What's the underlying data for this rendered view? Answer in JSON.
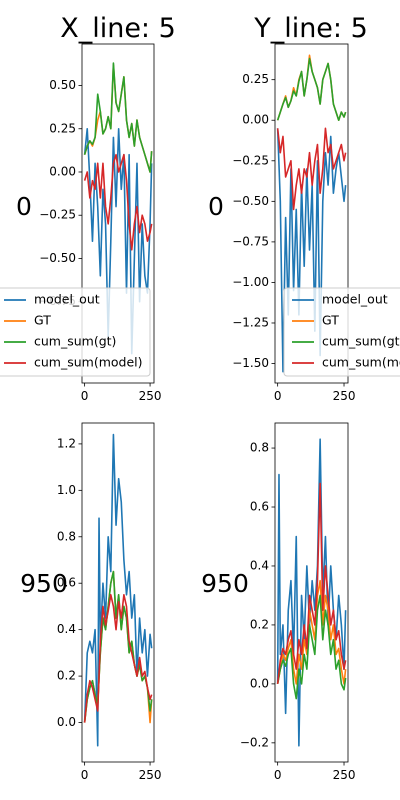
{
  "chart_data": [
    {
      "type": "line",
      "title": "X_line: 5",
      "row_label": "0",
      "xlim": [
        -10,
        265
      ],
      "ylim": [
        -1.22,
        0.74
      ],
      "xticks": [
        0,
        250
      ],
      "yticks": [
        -0.75,
        -0.5,
        -0.25,
        0.0,
        0.25,
        0.5
      ],
      "ytick_labels": [
        "−0.75",
        "−0.50",
        "−0.25",
        "0.00",
        "0.25",
        "0.50"
      ],
      "xtick_labels": [
        "0",
        "250"
      ],
      "legend": "lower-left",
      "series": [
        {
          "name": "model_out",
          "color": "#1f77b4",
          "x": [
            0,
            10,
            20,
            30,
            40,
            50,
            60,
            70,
            80,
            90,
            100,
            110,
            120,
            130,
            140,
            150,
            160,
            170,
            180,
            190,
            200,
            210,
            220,
            230,
            240,
            250,
            256
          ],
          "y": [
            0.1,
            0.25,
            -0.05,
            -0.4,
            0.05,
            -0.2,
            -0.6,
            -0.1,
            -0.3,
            -0.95,
            -0.4,
            0.2,
            -0.2,
            0.25,
            -0.1,
            0.1,
            -0.7,
            0.1,
            -1.05,
            -0.5,
            0.05,
            -0.75,
            -0.3,
            -0.6,
            -0.7,
            -0.3,
            0.05
          ]
        },
        {
          "name": "GT",
          "color": "#ff7f0e",
          "x": [
            0,
            10,
            20,
            30,
            40,
            50,
            60,
            70,
            80,
            90,
            100,
            110,
            120,
            130,
            140,
            150,
            160,
            170,
            180,
            190,
            200,
            210,
            220,
            230,
            240,
            250,
            256
          ],
          "y": [
            0.1,
            0.15,
            0.18,
            0.15,
            0.2,
            0.3,
            0.35,
            0.22,
            0.25,
            0.32,
            0.25,
            0.62,
            0.4,
            0.35,
            0.45,
            0.55,
            0.3,
            0.2,
            0.28,
            0.15,
            0.3,
            0.2,
            0.15,
            0.1,
            0.05,
            0.0,
            0.12
          ]
        },
        {
          "name": "cum_sum(gt)",
          "color": "#2ca02c",
          "x": [
            0,
            10,
            20,
            30,
            40,
            50,
            60,
            70,
            80,
            90,
            100,
            110,
            120,
            130,
            140,
            150,
            160,
            170,
            180,
            190,
            200,
            210,
            220,
            230,
            240,
            250,
            256
          ],
          "y": [
            0.1,
            0.15,
            0.18,
            0.16,
            0.2,
            0.45,
            0.35,
            0.22,
            0.25,
            0.32,
            0.25,
            0.63,
            0.4,
            0.35,
            0.45,
            0.55,
            0.3,
            0.2,
            0.28,
            0.15,
            0.3,
            0.2,
            0.15,
            0.1,
            0.05,
            0.0,
            0.12
          ]
        },
        {
          "name": "cum_sum(model)",
          "color": "#d62728",
          "x": [
            0,
            10,
            20,
            30,
            40,
            50,
            60,
            70,
            80,
            90,
            100,
            110,
            120,
            130,
            140,
            150,
            160,
            170,
            180,
            190,
            200,
            210,
            220,
            230,
            240,
            250,
            256
          ],
          "y": [
            -0.05,
            0.0,
            -0.15,
            -0.05,
            -0.1,
            0.05,
            -0.15,
            0.05,
            -0.2,
            -0.3,
            -0.15,
            0.05,
            0.1,
            0.0,
            0.05,
            0.1,
            -0.05,
            -0.3,
            -0.45,
            -0.3,
            -0.2,
            -0.35,
            -0.25,
            -0.3,
            -0.4,
            -0.35,
            -0.3
          ]
        }
      ]
    },
    {
      "type": "line",
      "title": "Y_line: 5",
      "row_label": "0",
      "xlim": [
        -10,
        265
      ],
      "ylim": [
        -1.62,
        0.47
      ],
      "xticks": [
        0,
        250
      ],
      "yticks": [
        -1.5,
        -1.25,
        -1.0,
        -0.75,
        -0.5,
        -0.25,
        0.0,
        0.25
      ],
      "ytick_labels": [
        "−1.50",
        "−1.25",
        "−1.00",
        "−0.75",
        "−0.50",
        "−0.25",
        "0.00",
        "0.25"
      ],
      "xtick_labels": [
        "0",
        "250"
      ],
      "legend": "lower-right",
      "series": [
        {
          "name": "model_out",
          "color": "#1f77b4",
          "x": [
            0,
            10,
            20,
            30,
            40,
            50,
            60,
            70,
            80,
            90,
            100,
            110,
            120,
            130,
            140,
            150,
            160,
            170,
            180,
            190,
            200,
            210,
            220,
            230,
            240,
            250,
            256
          ],
          "y": [
            -0.05,
            -0.5,
            -1.55,
            -0.6,
            -1.2,
            -0.3,
            -1.05,
            -0.55,
            -1.2,
            -0.4,
            -0.9,
            -0.3,
            -0.8,
            -0.4,
            -1.3,
            -0.25,
            -1.45,
            -0.5,
            -0.2,
            -0.4,
            -0.1,
            -0.45,
            -0.3,
            -0.2,
            -0.35,
            -0.5,
            -0.4
          ]
        },
        {
          "name": "GT",
          "color": "#ff7f0e",
          "x": [
            0,
            10,
            20,
            30,
            40,
            50,
            60,
            70,
            80,
            90,
            100,
            110,
            120,
            130,
            140,
            150,
            160,
            170,
            180,
            190,
            200,
            210,
            220,
            230,
            240,
            250,
            256
          ],
          "y": [
            0.0,
            0.05,
            0.1,
            0.15,
            0.08,
            0.12,
            0.2,
            0.15,
            0.25,
            0.3,
            0.15,
            0.25,
            0.4,
            0.3,
            0.25,
            0.2,
            0.1,
            0.25,
            0.3,
            0.35,
            0.25,
            0.1,
            0.05,
            0.0,
            0.05,
            0.02,
            0.05
          ]
        },
        {
          "name": "cum_sum(gt)",
          "color": "#2ca02c",
          "x": [
            0,
            10,
            20,
            30,
            40,
            50,
            60,
            70,
            80,
            90,
            100,
            110,
            120,
            130,
            140,
            150,
            160,
            170,
            180,
            190,
            200,
            210,
            220,
            230,
            240,
            250,
            256
          ],
          "y": [
            0.0,
            0.05,
            0.1,
            0.14,
            0.08,
            0.12,
            0.18,
            0.15,
            0.24,
            0.3,
            0.15,
            0.25,
            0.38,
            0.3,
            0.25,
            0.2,
            0.1,
            0.25,
            0.3,
            0.35,
            0.25,
            0.1,
            0.05,
            0.0,
            0.05,
            0.02,
            0.05
          ]
        },
        {
          "name": "cum_sum(model)",
          "color": "#d62728",
          "x": [
            0,
            10,
            20,
            30,
            40,
            50,
            60,
            70,
            80,
            90,
            100,
            110,
            120,
            130,
            140,
            150,
            160,
            170,
            180,
            190,
            200,
            210,
            220,
            230,
            240,
            250,
            256
          ],
          "y": [
            -0.05,
            -0.2,
            -0.1,
            -0.35,
            -0.3,
            -0.25,
            -0.55,
            -0.4,
            -0.3,
            -0.45,
            -0.3,
            -0.35,
            -0.2,
            -0.4,
            -0.25,
            -0.15,
            -0.45,
            -0.3,
            -0.05,
            -0.2,
            -0.15,
            -0.3,
            -0.25,
            -0.2,
            -0.15,
            -0.25,
            -0.2
          ]
        }
      ]
    },
    {
      "type": "line",
      "title": "",
      "row_label": "950",
      "xlim": [
        -10,
        265
      ],
      "ylim": [
        -0.17,
        1.29
      ],
      "xticks": [
        0,
        250
      ],
      "yticks": [
        0.0,
        0.2,
        0.4,
        0.6,
        0.8,
        1.0,
        1.2
      ],
      "ytick_labels": [
        "0.0",
        "0.2",
        "0.4",
        "0.6",
        "0.8",
        "1.0",
        "1.2"
      ],
      "xtick_labels": [
        "0",
        "250"
      ],
      "legend": "none",
      "series": [
        {
          "name": "model_out",
          "color": "#1f77b4",
          "x": [
            0,
            10,
            20,
            30,
            40,
            50,
            55,
            60,
            70,
            80,
            90,
            100,
            110,
            120,
            130,
            140,
            150,
            160,
            170,
            180,
            190,
            200,
            210,
            220,
            230,
            240,
            250,
            256
          ],
          "y": [
            0.0,
            0.3,
            0.35,
            0.3,
            0.4,
            -0.1,
            0.88,
            0.35,
            0.6,
            0.45,
            0.8,
            0.65,
            1.24,
            0.85,
            1.05,
            0.95,
            0.7,
            0.55,
            0.65,
            0.45,
            0.55,
            0.2,
            0.45,
            0.3,
            0.4,
            0.2,
            0.38,
            0.32
          ]
        },
        {
          "name": "GT",
          "color": "#ff7f0e",
          "x": [
            0,
            10,
            20,
            30,
            40,
            50,
            60,
            70,
            80,
            90,
            100,
            110,
            120,
            130,
            140,
            150,
            160,
            170,
            180,
            190,
            200,
            210,
            220,
            230,
            240,
            250,
            256
          ],
          "y": [
            0.0,
            0.1,
            0.15,
            0.18,
            0.12,
            0.08,
            0.3,
            0.45,
            0.4,
            0.5,
            0.6,
            0.65,
            0.45,
            0.55,
            0.4,
            0.5,
            0.45,
            0.3,
            0.35,
            0.25,
            0.2,
            0.25,
            0.18,
            0.2,
            0.15,
            0.0,
            0.1
          ]
        },
        {
          "name": "cum_sum(gt)",
          "color": "#2ca02c",
          "x": [
            0,
            10,
            20,
            30,
            40,
            50,
            60,
            70,
            80,
            90,
            100,
            110,
            120,
            130,
            140,
            150,
            160,
            170,
            180,
            190,
            200,
            210,
            220,
            230,
            240,
            250,
            256
          ],
          "y": [
            0.0,
            0.1,
            0.15,
            0.18,
            0.12,
            0.08,
            0.3,
            0.45,
            0.4,
            0.5,
            0.6,
            0.65,
            0.45,
            0.55,
            0.4,
            0.5,
            0.45,
            0.3,
            0.35,
            0.25,
            0.2,
            0.25,
            0.18,
            0.2,
            0.15,
            0.05,
            0.1
          ]
        },
        {
          "name": "cum_sum(model)",
          "color": "#d62728",
          "x": [
            0,
            10,
            20,
            30,
            40,
            50,
            60,
            70,
            80,
            90,
            100,
            110,
            120,
            130,
            140,
            150,
            160,
            170,
            180,
            190,
            200,
            210,
            220,
            230,
            240,
            250,
            256
          ],
          "y": [
            0.0,
            0.12,
            0.18,
            0.15,
            0.1,
            0.05,
            0.35,
            0.5,
            0.42,
            0.48,
            0.55,
            0.5,
            0.4,
            0.52,
            0.45,
            0.55,
            0.5,
            0.35,
            0.3,
            0.25,
            0.2,
            0.28,
            0.2,
            0.22,
            0.15,
            0.1,
            0.12
          ]
        }
      ]
    },
    {
      "type": "line",
      "title": "",
      "row_label": "950",
      "xlim": [
        -10,
        265
      ],
      "ylim": [
        -0.265,
        0.885
      ],
      "xticks": [
        0,
        250
      ],
      "yticks": [
        -0.2,
        0.0,
        0.2,
        0.4,
        0.6,
        0.8
      ],
      "ytick_labels": [
        "−0.2",
        "0.0",
        "0.2",
        "0.4",
        "0.6",
        "0.8"
      ],
      "xtick_labels": [
        "0",
        "250"
      ],
      "legend": "none",
      "series": [
        {
          "name": "model_out",
          "color": "#1f77b4",
          "x": [
            0,
            5,
            10,
            20,
            30,
            40,
            50,
            60,
            70,
            80,
            90,
            100,
            110,
            120,
            130,
            140,
            150,
            160,
            170,
            180,
            190,
            200,
            210,
            220,
            230,
            240,
            250,
            256
          ],
          "y": [
            0.0,
            0.71,
            0.1,
            0.2,
            -0.1,
            0.25,
            0.35,
            0.1,
            0.5,
            -0.21,
            0.3,
            0.15,
            0.4,
            0.2,
            0.35,
            0.25,
            0.4,
            0.83,
            0.3,
            0.5,
            0.2,
            0.4,
            0.25,
            0.15,
            0.3,
            0.2,
            0.05,
            0.25
          ]
        },
        {
          "name": "GT",
          "color": "#ff7f0e",
          "x": [
            0,
            10,
            20,
            30,
            40,
            50,
            60,
            70,
            80,
            90,
            100,
            110,
            120,
            130,
            140,
            150,
            160,
            170,
            180,
            190,
            200,
            210,
            220,
            230,
            240,
            250,
            256
          ],
          "y": [
            0.0,
            0.05,
            0.1,
            0.08,
            0.12,
            0.15,
            0.05,
            0.0,
            0.1,
            0.05,
            0.15,
            0.1,
            0.25,
            0.2,
            0.15,
            0.3,
            0.35,
            0.2,
            0.3,
            0.25,
            0.15,
            0.2,
            0.1,
            0.12,
            0.05,
            0.0,
            0.05
          ]
        },
        {
          "name": "cum_sum(gt)",
          "color": "#2ca02c",
          "x": [
            0,
            10,
            20,
            30,
            40,
            50,
            60,
            70,
            80,
            90,
            100,
            110,
            120,
            130,
            140,
            150,
            160,
            170,
            180,
            190,
            200,
            210,
            220,
            230,
            240,
            250,
            256
          ],
          "y": [
            0.0,
            0.05,
            0.08,
            0.06,
            0.1,
            0.12,
            0.0,
            -0.05,
            0.05,
            0.0,
            0.1,
            0.05,
            0.2,
            0.15,
            0.1,
            0.25,
            0.3,
            0.15,
            0.25,
            0.2,
            0.1,
            0.15,
            0.05,
            0.08,
            0.0,
            -0.02,
            0.02
          ]
        },
        {
          "name": "cum_sum(model)",
          "color": "#d62728",
          "x": [
            0,
            10,
            20,
            30,
            40,
            50,
            60,
            70,
            80,
            90,
            100,
            110,
            120,
            130,
            140,
            150,
            160,
            170,
            180,
            190,
            200,
            210,
            220,
            230,
            240,
            250,
            256
          ],
          "y": [
            0.0,
            0.08,
            0.12,
            0.1,
            0.15,
            0.18,
            0.1,
            0.05,
            0.15,
            0.1,
            0.2,
            0.12,
            0.3,
            0.25,
            0.2,
            0.35,
            0.68,
            0.25,
            0.4,
            0.3,
            0.2,
            0.25,
            0.15,
            0.18,
            0.1,
            0.05,
            0.08
          ]
        }
      ]
    }
  ]
}
